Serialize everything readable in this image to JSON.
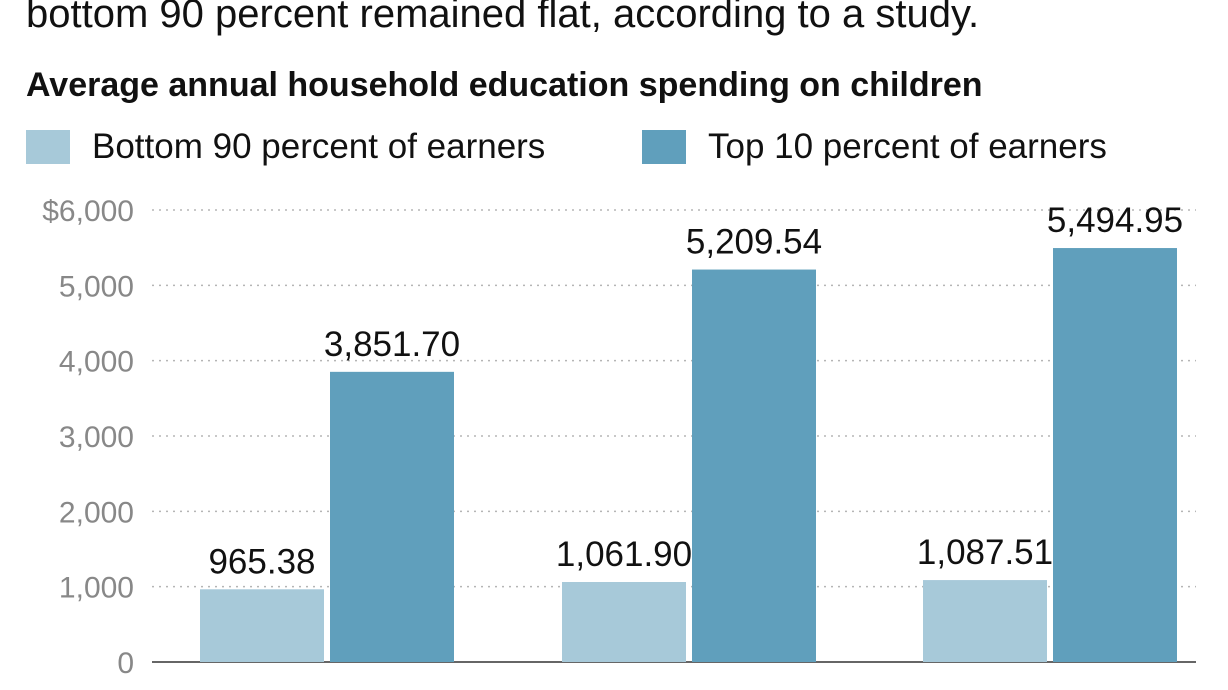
{
  "intro_text": "bottom 90 percent remained flat, according to a study.",
  "chart_data": {
    "type": "bar",
    "title": "Average annual household education spending on children",
    "categories": [
      "",
      "",
      ""
    ],
    "series": [
      {
        "name": "Bottom 90 percent of earners",
        "color": "#a7c9d9",
        "values": [
          965.38,
          1061.9,
          1087.51
        ],
        "labels": [
          "965.38",
          "1,061.90",
          "1,087.51"
        ]
      },
      {
        "name": "Top 10 percent of earners",
        "color": "#609fbc",
        "values": [
          3851.7,
          5209.54,
          5494.95
        ],
        "labels": [
          "3,851.70",
          "5,209.54",
          "5,494.95"
        ]
      }
    ],
    "ylim": [
      0,
      6000
    ],
    "yticks": [
      0,
      1000,
      2000,
      3000,
      4000,
      5000,
      6000
    ],
    "ytick_labels": [
      "0",
      "1,000",
      "2,000",
      "3,000",
      "4,000",
      "5,000",
      "$6,000"
    ],
    "grid": "dotted horizontal",
    "legend_position": "top-left"
  }
}
